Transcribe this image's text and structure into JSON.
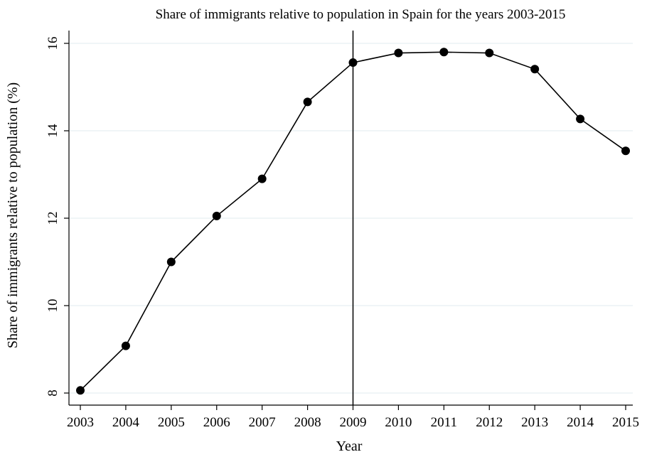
{
  "chart_data": {
    "type": "line",
    "title": "Share of immigrants relative to population in Spain for the years 2003-2015",
    "xlabel": "Year",
    "ylabel": "Share of immigrants relative to population (%)",
    "x": [
      2003,
      2004,
      2005,
      2006,
      2007,
      2008,
      2009,
      2010,
      2011,
      2012,
      2013,
      2014,
      2015
    ],
    "x_tick_labels": [
      "2003",
      "2004",
      "2005",
      "2006",
      "2007",
      "2008",
      "2009",
      "2010",
      "2011",
      "2012",
      "2013",
      "2014",
      "2015"
    ],
    "y_ticks": [
      8,
      10,
      12,
      14,
      16
    ],
    "y_tick_labels": [
      "8",
      "10",
      "12",
      "14",
      "16"
    ],
    "xlim": [
      2003,
      2015
    ],
    "ylim": [
      8,
      16
    ],
    "series": [
      {
        "values": [
          8.06,
          9.08,
          11.0,
          12.05,
          12.9,
          14.66,
          15.56,
          15.78,
          15.8,
          15.78,
          15.41,
          14.27,
          13.54
        ]
      }
    ],
    "reference_line_x": 2009,
    "grid": "horizontal",
    "legend": "none",
    "line_color": "#000000",
    "marker_color": "#000000",
    "grid_color": "#e8eff2"
  }
}
